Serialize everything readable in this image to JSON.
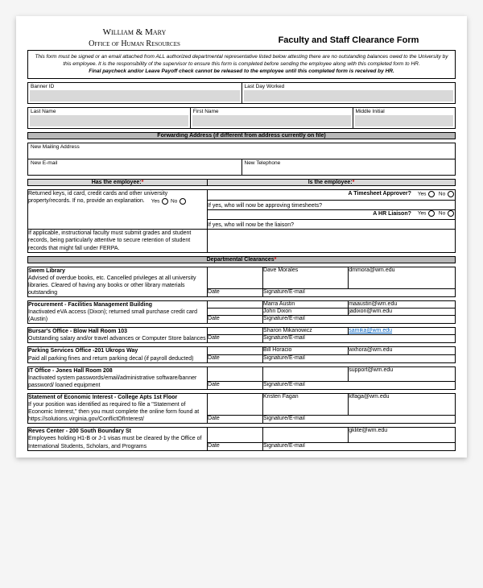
{
  "header": {
    "org": "William & Mary",
    "office": "Office of Human Resources",
    "title": "Faculty and Staff Clearance Form"
  },
  "intro": {
    "p1": "This form must be signed or an email attached from ALL authorized departmental representative listed below attesting there are no outstanding balances owed to the University by this employee. It is the responsibility of the supervisor to ensure this form is completed before sending the employee along with this completed form to HR.",
    "p2": "Final paycheck and/or Leave Payoff check cannot be released to the employee until this completed form is received by HR."
  },
  "fields": {
    "banner_id": "Banner ID",
    "last_day": "Last Day Worked",
    "last_name": "Last Name",
    "first_name": "First Name",
    "middle": "Middle Initial",
    "fwd_bar": "Forwarding Address (if different from address currently on file)",
    "new_mail": "New Mailing Address",
    "new_email": "New E-mail",
    "new_phone": "New Telephone"
  },
  "q": {
    "has_header": "Has the employee:",
    "is_header": "Is the employee:",
    "returned": "Returned keys, id card, credit cards and other university property/records. If no, provide an explanation.",
    "timesheet": "A Timesheet Approver?",
    "liaison": "A HR Liaison?",
    "approving": "If yes, who will now be approving timesheets?",
    "liaison_who": "If yes, who will now be the liaison?",
    "ferpa": "If applicable, instructional faculty must submit grades and student records, being particularly attentive to secure retention of student records that might fall under FERPA.",
    "yes": "Yes",
    "no": "No"
  },
  "dept_bar": "Departmental Clearances",
  "labels": {
    "date": "Date",
    "sig": "Signature/E-mail"
  },
  "depts": [
    {
      "title": "Swem Library",
      "desc": "Advised of overdue books, etc. Cancelled privileges at all university libraries. Cleared of having any books or other library materials outstanding",
      "contacts": [
        {
          "name": "Dave Morales",
          "email": "dmmora@wm.edu"
        }
      ]
    },
    {
      "title": "Procurement - Facilities Management Building",
      "desc": "Inactivated eVA access (Dixon); returned small purchase credit card (Austin)",
      "contacts": [
        {
          "name": "Marra Austin",
          "email": "maaustin@wm.edu"
        },
        {
          "name": "John Dixon",
          "email": "jadixon@wm.edu"
        }
      ]
    },
    {
      "title": "Bursar's Office - Blow Hall Room 103",
      "desc": "Outstanding salary and/or travel advances or Computer Store balances",
      "contacts": [
        {
          "name": "Sharon Mikanowicz",
          "email": "samika@wm.edu",
          "link": true
        }
      ]
    },
    {
      "title": "Parking Services Office -201 Ukrops Way",
      "desc": "Paid all parking fines and return parking decal (if payroll deducted)",
      "contacts": [
        {
          "name": "Bill Horacio",
          "email": "wxhora@wm.edu"
        }
      ]
    },
    {
      "title": "IT Office - Jones Hall Room 208",
      "desc": "Inactivated system passwords/email/administrative software/banner password/ loaned equipment",
      "contacts": [
        {
          "name": "",
          "email": "support@wm.edu"
        }
      ]
    },
    {
      "title": "Statement of Economic Interest - College Apts 1st Floor",
      "desc": "If your position was identified as required to file a \"Statement of Economic Interest,\" then you must complete the online form found at https://solutions.virginia.gov/ConflictOfInterest/",
      "contacts": [
        {
          "name": "Kristen Fagan",
          "email": "klfaga@wm.edu"
        }
      ]
    },
    {
      "title": "Reves Center - 200 South Boundary St",
      "desc": "Employees holding H1-B or J-1 visas must be cleared by the Office of International Students, Scholars, and Programs",
      "contacts": [
        {
          "name": "",
          "email": "gklite@wm.edu"
        }
      ]
    }
  ]
}
